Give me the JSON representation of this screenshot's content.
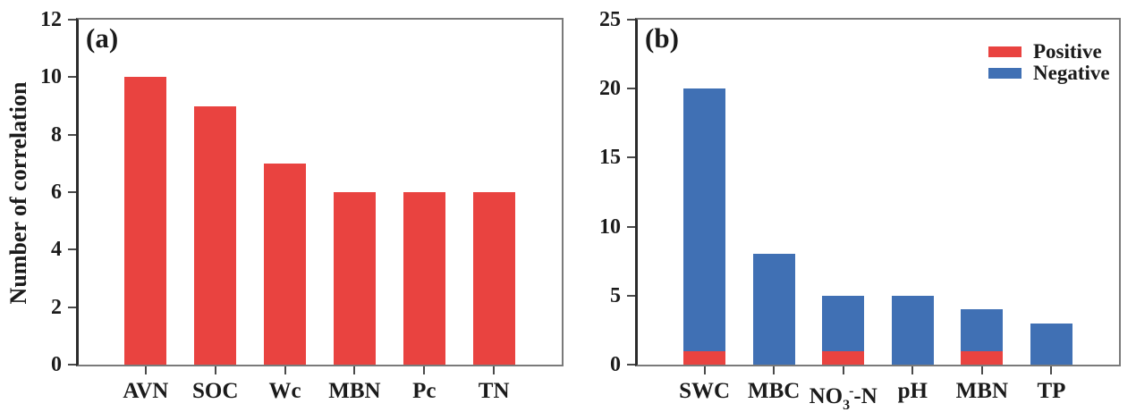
{
  "figure": {
    "background": "#ffffff",
    "frame_color": "#7a7a7a",
    "left_axis_color": "#2b2b2b",
    "text_color": "#1b1b1b"
  },
  "colors": {
    "positive": "#e94340",
    "negative": "#4070b4"
  },
  "legend": {
    "position": "top-right-panel-b",
    "items": [
      {
        "label": "Positive",
        "color": "#e94340"
      },
      {
        "label": "Negative",
        "color": "#4070b4"
      }
    ]
  },
  "chart_data": [
    {
      "type": "bar",
      "panel_label": "(a)",
      "title": "",
      "xlabel": "",
      "ylabel": "Number of correlation",
      "categories": [
        "AVN",
        "SOC",
        "Wc",
        "MBN",
        "Pc",
        "TN"
      ],
      "values": [
        10,
        9,
        7,
        6,
        6,
        6
      ],
      "bar_color": "#e94340",
      "ylim": [
        0,
        12
      ],
      "yticks": [
        0,
        2,
        4,
        6,
        8,
        10,
        12
      ],
      "grid": false,
      "legend": false
    },
    {
      "type": "stacked-bar",
      "panel_label": "(b)",
      "title": "",
      "xlabel": "",
      "ylabel": "",
      "categories": [
        "SWC",
        "MBC",
        "NO3--N",
        "pH",
        "MBN",
        "TP"
      ],
      "category_display": [
        {
          "text": "SWC"
        },
        {
          "text": "MBC"
        },
        {
          "parts": [
            {
              "t": "NO"
            },
            {
              "t": "3",
              "style": "sub"
            },
            {
              "t": "-",
              "style": "sup"
            },
            {
              "t": "-N"
            }
          ]
        },
        {
          "text": "pH"
        },
        {
          "text": "MBN"
        },
        {
          "text": "TP"
        }
      ],
      "series": [
        {
          "name": "Positive",
          "color": "#e94340",
          "values": [
            1,
            0,
            1,
            0,
            1,
            0
          ]
        },
        {
          "name": "Negative",
          "color": "#4070b4",
          "values": [
            19,
            8,
            4,
            5,
            3,
            3
          ]
        }
      ],
      "totals": [
        20,
        8,
        5,
        5,
        4,
        3
      ],
      "ylim": [
        0,
        25
      ],
      "yticks": [
        0,
        5,
        10,
        15,
        20,
        25
      ],
      "grid": false,
      "legend": true,
      "legend_position": "top-right"
    }
  ]
}
